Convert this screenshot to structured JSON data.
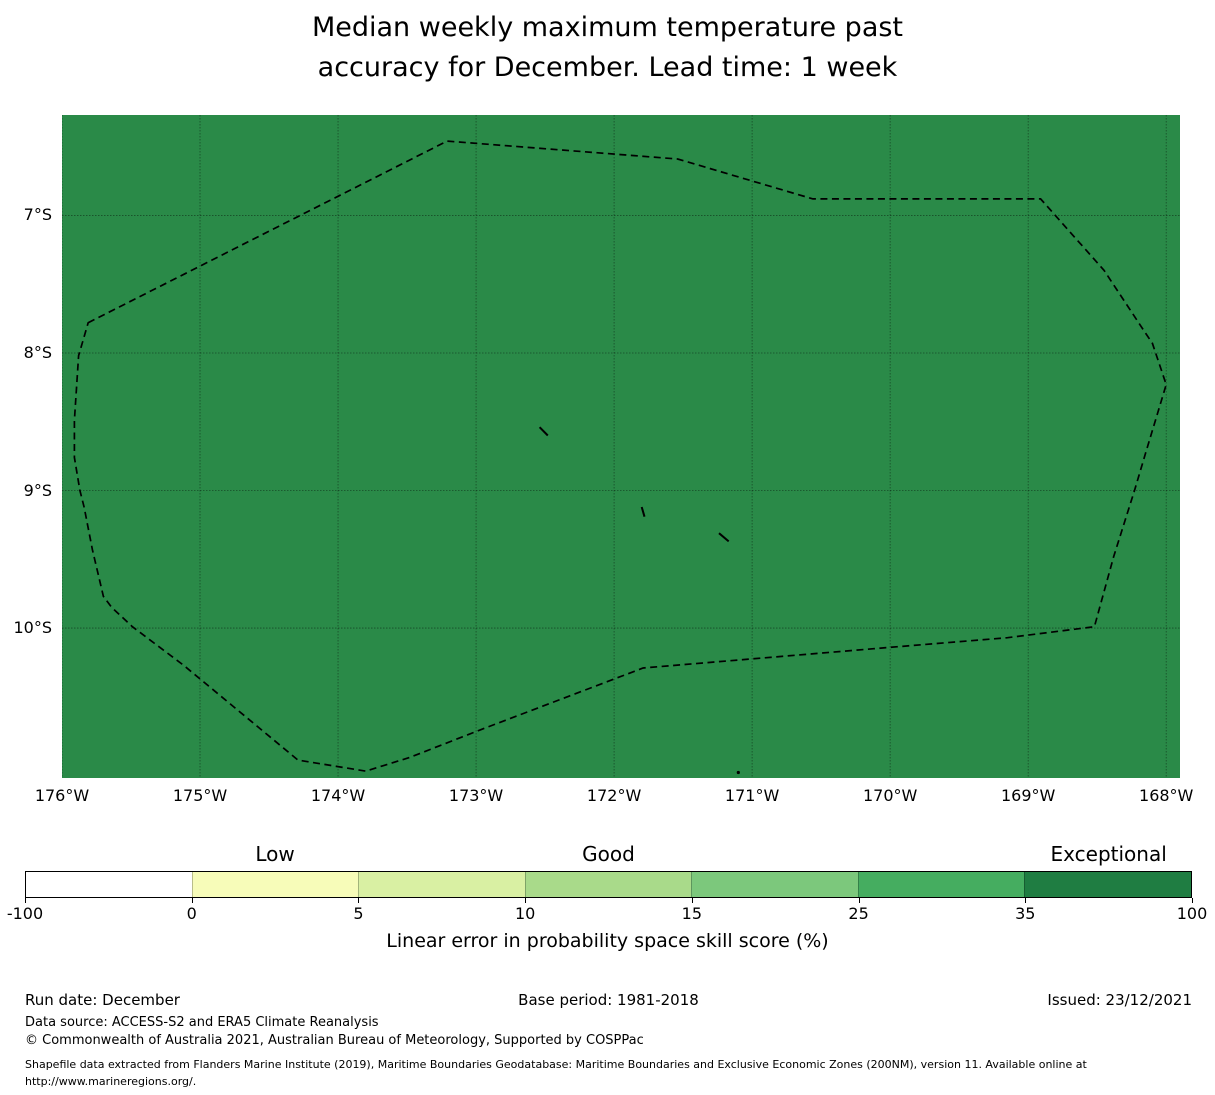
{
  "header": {
    "title_line1": "Median weekly maximum temperature past",
    "title_line2": "accuracy for December. Lead time: 1 week"
  },
  "chart_data": {
    "type": "heatmap",
    "title": "Median weekly maximum temperature past accuracy for December. Lead time: 1 week",
    "map_fill_color": "#2a8a48",
    "boundary_color": "#000000",
    "grid": true,
    "axes": {
      "lon_left_degW": 176.0,
      "lon_right_degW": 167.9,
      "lat_top_degS": 6.27,
      "lat_bottom_degS": 11.09,
      "lon_ticks_degW": [
        176,
        175,
        174,
        173,
        172,
        171,
        170,
        169,
        168
      ],
      "lat_ticks_degS": [
        7,
        8,
        9,
        10
      ]
    },
    "x_tick_labels": [
      "176°W",
      "175°W",
      "174°W",
      "173°W",
      "172°W",
      "171°W",
      "170°W",
      "169°W",
      "168°W"
    ],
    "y_tick_labels": [
      "7°S",
      "8°S",
      "9°S",
      "10°S"
    ],
    "eez_boundary_degW_degS": [
      [
        175.81,
        7.78
      ],
      [
        173.21,
        6.46
      ],
      [
        171.54,
        6.59
      ],
      [
        170.56,
        6.88
      ],
      [
        168.91,
        6.88
      ],
      [
        168.45,
        7.4
      ],
      [
        168.16,
        7.84
      ],
      [
        168.1,
        7.93
      ],
      [
        168.0,
        8.23
      ],
      [
        168.15,
        8.73
      ],
      [
        168.23,
        9.0
      ],
      [
        168.38,
        9.48
      ],
      [
        168.52,
        9.99
      ],
      [
        169.15,
        10.07
      ],
      [
        170.12,
        10.15
      ],
      [
        171.79,
        10.29
      ],
      [
        172.97,
        10.74
      ],
      [
        173.48,
        10.94
      ],
      [
        173.8,
        11.04
      ],
      [
        174.29,
        10.96
      ],
      [
        175.12,
        10.27
      ],
      [
        175.49,
        9.99
      ],
      [
        175.64,
        9.85
      ],
      [
        175.7,
        9.77
      ],
      [
        175.78,
        9.43
      ],
      [
        175.84,
        9.12
      ],
      [
        175.87,
        9.0
      ],
      [
        175.91,
        8.76
      ],
      [
        175.91,
        8.49
      ],
      [
        175.88,
        8.02
      ]
    ],
    "islands_degW_degS": [
      [
        [
          172.54,
          8.54
        ],
        [
          172.48,
          8.6
        ]
      ],
      [
        [
          171.8,
          9.12
        ],
        [
          171.78,
          9.19
        ]
      ],
      [
        [
          171.24,
          9.31
        ],
        [
          171.17,
          9.37
        ]
      ],
      [
        [
          171.1,
          11.05
        ]
      ]
    ],
    "colorbar": {
      "label": "Linear error in probability space skill score (%)",
      "tick_labels": [
        "-100",
        "0",
        "5",
        "10",
        "15",
        "25",
        "35",
        "100"
      ],
      "segment_colors": [
        "#ffffff",
        "#f7fcb9",
        "#d9f0a3",
        "#a9da8a",
        "#7cc87c",
        "#45ad60",
        "#1f7d42"
      ],
      "categories": [
        {
          "label": "Low",
          "segment_index": 1
        },
        {
          "label": "Good",
          "segment_index": 3
        },
        {
          "label": "Exceptional",
          "segment_index": 6
        }
      ]
    }
  },
  "footer": {
    "run_date": "Run date: December",
    "base_period": "Base period: 1981-2018",
    "issued": "Issued: 23/12/2021",
    "data_source": "Data source: ACCESS-S2 and ERA5 Climate Reanalysis",
    "copyright": "© Commonwealth of Australia 2021, Australian Bureau of Meteorology, Supported by COSPPac",
    "shapefile_note": "Shapefile data extracted from Flanders Marine Institute (2019), Maritime Boundaries Geodatabase: Maritime Boundaries and Exclusive Economic Zones (200NM), version 11. Available online at http://www.marineregions.org/."
  }
}
